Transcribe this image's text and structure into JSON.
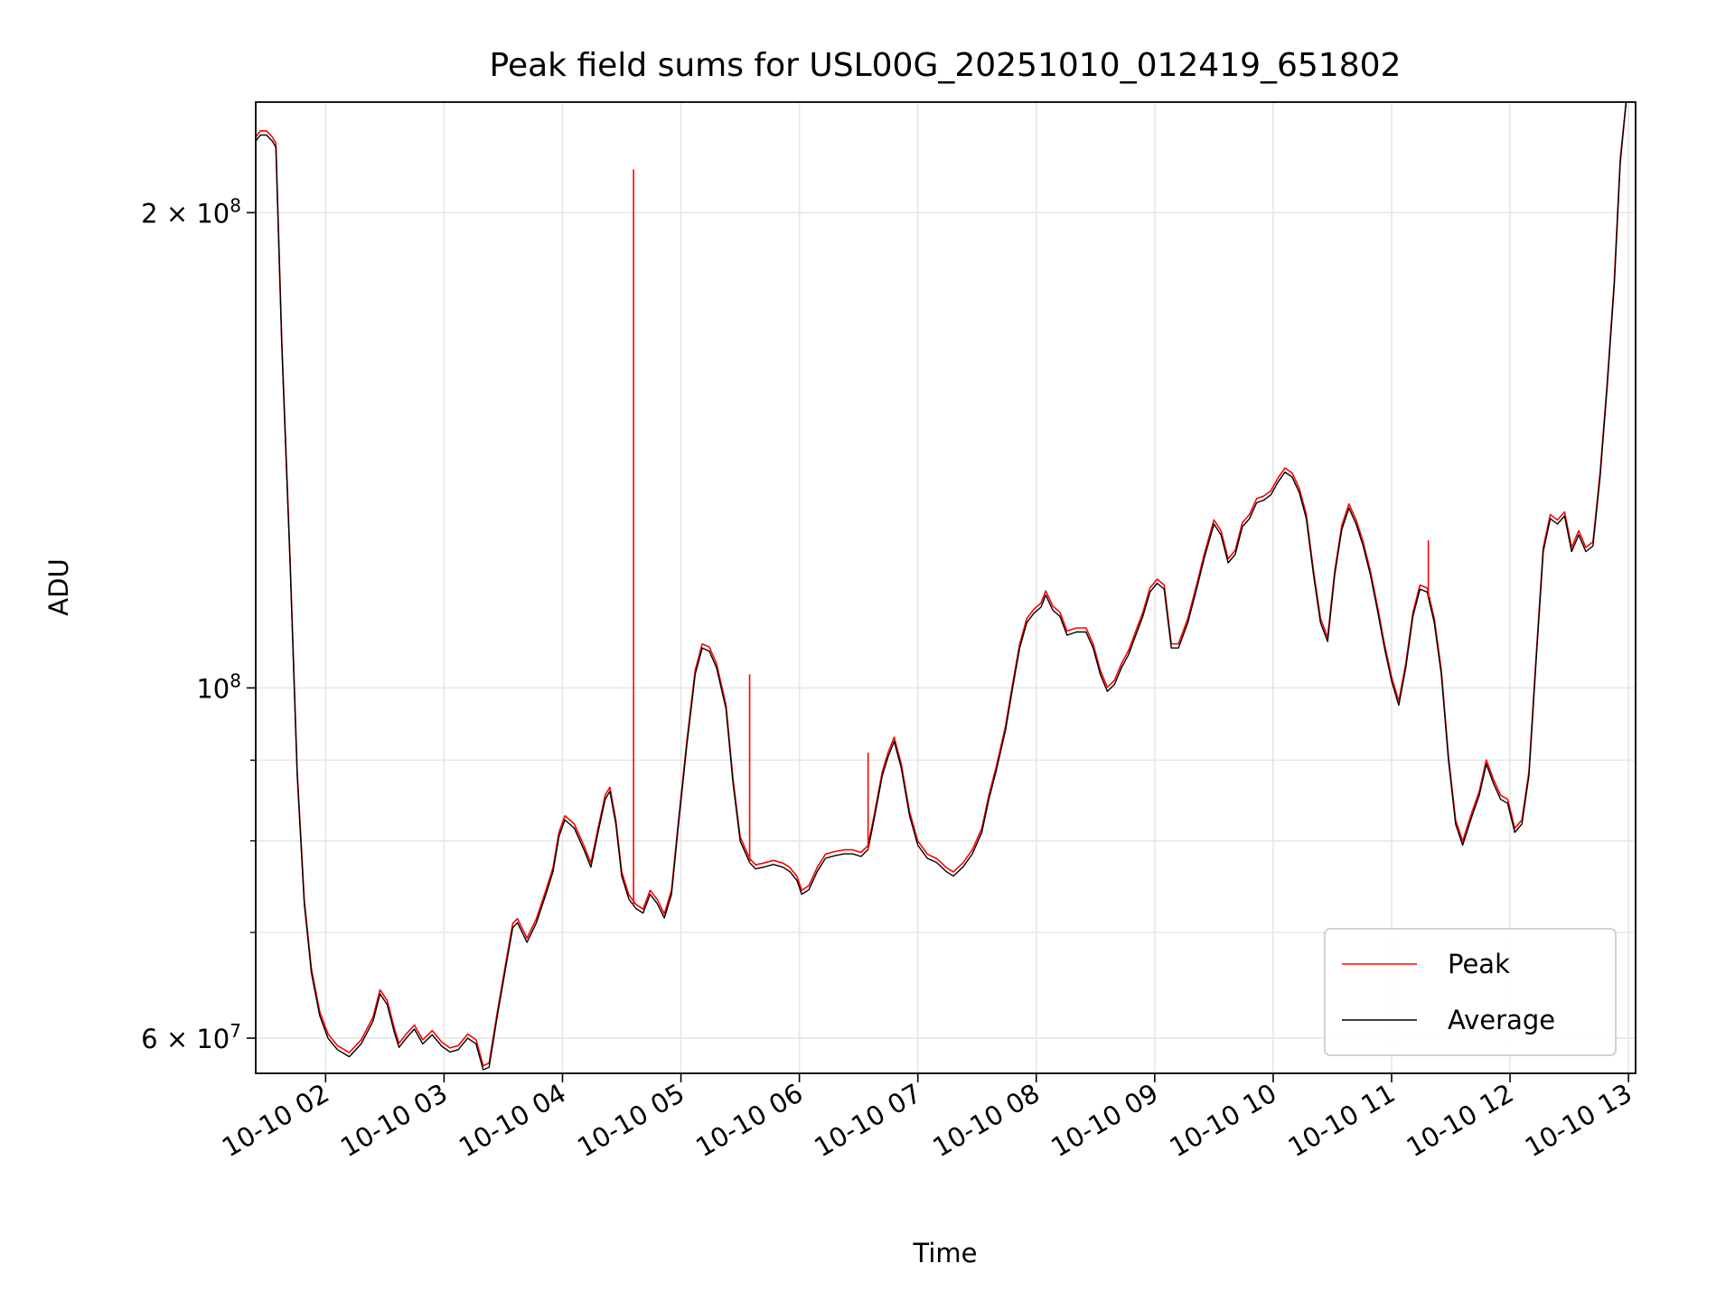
{
  "chart_data": {
    "type": "line",
    "title": "Peak field sums for USL00G_20251010_012419_651802",
    "xlabel": "Time",
    "ylabel": "ADU",
    "yscale": "log",
    "ylim": [
      57000000,
      235000000
    ],
    "xlim_hours": [
      1.41,
      13.06
    ],
    "grid": true,
    "legend_position": "lower right",
    "x_ticks": [
      {
        "hour": 2,
        "label": "10-10 02"
      },
      {
        "hour": 3,
        "label": "10-10 03"
      },
      {
        "hour": 4,
        "label": "10-10 04"
      },
      {
        "hour": 5,
        "label": "10-10 05"
      },
      {
        "hour": 6,
        "label": "10-10 06"
      },
      {
        "hour": 7,
        "label": "10-10 07"
      },
      {
        "hour": 8,
        "label": "10-10 08"
      },
      {
        "hour": 9,
        "label": "10-10 09"
      },
      {
        "hour": 10,
        "label": "10-10 10"
      },
      {
        "hour": 11,
        "label": "10-10 11"
      },
      {
        "hour": 12,
        "label": "10-10 12"
      },
      {
        "hour": 13,
        "label": "10-10 13"
      }
    ],
    "y_major_ticks": [
      {
        "value": 60000000,
        "mant": "6",
        "exp": "7"
      },
      {
        "value": 100000000,
        "mant": "",
        "exp": "8"
      },
      {
        "value": 200000000,
        "mant": "2",
        "exp": "8"
      }
    ],
    "y_minor_ticks": [
      70000000,
      80000000,
      90000000
    ],
    "series": [
      {
        "name": "Peak",
        "color": "#ff0000",
        "spikes": [
          {
            "hour": 4.6,
            "value": 213000000
          },
          {
            "hour": 5.58,
            "value": 102000000
          },
          {
            "hour": 11.31,
            "value": 124000000
          },
          {
            "hour": 6.58,
            "value": 91000000
          }
        ]
      },
      {
        "name": "Average",
        "color": "#000000",
        "points": [
          [
            1.41,
            222000000
          ],
          [
            1.45,
            224000000
          ],
          [
            1.5,
            224000000
          ],
          [
            1.55,
            222000000
          ],
          [
            1.58,
            220000000
          ],
          [
            1.63,
            165000000
          ],
          [
            1.7,
            120000000
          ],
          [
            1.76,
            88000000
          ],
          [
            1.82,
            73000000
          ],
          [
            1.88,
            66000000
          ],
          [
            1.95,
            62000000
          ],
          [
            2.02,
            60000000
          ],
          [
            2.1,
            59000000
          ],
          [
            2.2,
            58400000
          ],
          [
            2.3,
            59500000
          ],
          [
            2.4,
            61500000
          ],
          [
            2.46,
            64000000
          ],
          [
            2.52,
            63000000
          ],
          [
            2.58,
            60500000
          ],
          [
            2.62,
            59200000
          ],
          [
            2.68,
            60000000
          ],
          [
            2.75,
            60800000
          ],
          [
            2.82,
            59500000
          ],
          [
            2.9,
            60300000
          ],
          [
            2.98,
            59300000
          ],
          [
            3.05,
            58800000
          ],
          [
            3.12,
            59000000
          ],
          [
            3.2,
            60000000
          ],
          [
            3.27,
            59500000
          ],
          [
            3.33,
            57300000
          ],
          [
            3.38,
            57500000
          ],
          [
            3.45,
            62000000
          ],
          [
            3.52,
            66500000
          ],
          [
            3.58,
            70500000
          ],
          [
            3.62,
            71000000
          ],
          [
            3.7,
            69000000
          ],
          [
            3.78,
            71000000
          ],
          [
            3.86,
            74000000
          ],
          [
            3.92,
            76500000
          ],
          [
            3.97,
            80500000
          ],
          [
            4.02,
            82500000
          ],
          [
            4.1,
            81500000
          ],
          [
            4.18,
            79000000
          ],
          [
            4.24,
            77000000
          ],
          [
            4.3,
            81000000
          ],
          [
            4.36,
            85000000
          ],
          [
            4.4,
            86000000
          ],
          [
            4.45,
            82000000
          ],
          [
            4.5,
            76000000
          ],
          [
            4.56,
            73500000
          ],
          [
            4.62,
            72500000
          ],
          [
            4.68,
            72000000
          ],
          [
            4.74,
            74000000
          ],
          [
            4.8,
            73000000
          ],
          [
            4.86,
            71500000
          ],
          [
            4.92,
            74000000
          ],
          [
            4.98,
            82000000
          ],
          [
            5.05,
            92000000
          ],
          [
            5.12,
            102000000
          ],
          [
            5.18,
            106000000
          ],
          [
            5.24,
            105500000
          ],
          [
            5.3,
            103000000
          ],
          [
            5.38,
            97000000
          ],
          [
            5.44,
            87000000
          ],
          [
            5.5,
            80000000
          ],
          [
            5.58,
            77500000
          ],
          [
            5.63,
            76800000
          ],
          [
            5.7,
            77000000
          ],
          [
            5.78,
            77300000
          ],
          [
            5.86,
            77000000
          ],
          [
            5.92,
            76500000
          ],
          [
            5.98,
            75500000
          ],
          [
            6.02,
            74000000
          ],
          [
            6.08,
            74500000
          ],
          [
            6.15,
            76500000
          ],
          [
            6.22,
            78000000
          ],
          [
            6.3,
            78300000
          ],
          [
            6.38,
            78500000
          ],
          [
            6.45,
            78500000
          ],
          [
            6.52,
            78200000
          ],
          [
            6.58,
            79000000
          ],
          [
            6.63,
            82500000
          ],
          [
            6.7,
            88000000
          ],
          [
            6.75,
            90500000
          ],
          [
            6.8,
            92500000
          ],
          [
            6.86,
            89000000
          ],
          [
            6.93,
            83000000
          ],
          [
            7.0,
            79500000
          ],
          [
            7.08,
            78000000
          ],
          [
            7.16,
            77500000
          ],
          [
            7.24,
            76500000
          ],
          [
            7.3,
            76000000
          ],
          [
            7.38,
            77000000
          ],
          [
            7.46,
            78500000
          ],
          [
            7.54,
            81000000
          ],
          [
            7.6,
            85000000
          ],
          [
            7.66,
            88500000
          ],
          [
            7.74,
            94000000
          ],
          [
            7.8,
            100000000
          ],
          [
            7.86,
            106000000
          ],
          [
            7.92,
            110000000
          ],
          [
            7.98,
            111500000
          ],
          [
            8.04,
            112500000
          ],
          [
            8.08,
            114500000
          ],
          [
            8.14,
            112000000
          ],
          [
            8.2,
            111000000
          ],
          [
            8.26,
            108000000
          ],
          [
            8.34,
            108500000
          ],
          [
            8.42,
            108500000
          ],
          [
            8.48,
            106000000
          ],
          [
            8.54,
            102000000
          ],
          [
            8.6,
            99500000
          ],
          [
            8.66,
            100500000
          ],
          [
            8.72,
            103000000
          ],
          [
            8.78,
            105000000
          ],
          [
            8.84,
            108000000
          ],
          [
            8.9,
            111000000
          ],
          [
            8.96,
            115000000
          ],
          [
            9.02,
            116500000
          ],
          [
            9.08,
            115500000
          ],
          [
            9.14,
            106000000
          ],
          [
            9.2,
            106000000
          ],
          [
            9.28,
            110000000
          ],
          [
            9.36,
            116000000
          ],
          [
            9.42,
            121000000
          ],
          [
            9.5,
            127000000
          ],
          [
            9.56,
            125000000
          ],
          [
            9.62,
            120000000
          ],
          [
            9.68,
            121500000
          ],
          [
            9.74,
            126500000
          ],
          [
            9.8,
            128000000
          ],
          [
            9.86,
            131000000
          ],
          [
            9.92,
            131500000
          ],
          [
            9.98,
            132500000
          ],
          [
            10.04,
            135000000
          ],
          [
            10.1,
            137000000
          ],
          [
            10.16,
            136000000
          ],
          [
            10.22,
            133000000
          ],
          [
            10.28,
            128000000
          ],
          [
            10.34,
            118000000
          ],
          [
            10.4,
            110000000
          ],
          [
            10.46,
            107000000
          ],
          [
            10.52,
            118000000
          ],
          [
            10.58,
            126000000
          ],
          [
            10.64,
            130000000
          ],
          [
            10.7,
            127000000
          ],
          [
            10.76,
            123000000
          ],
          [
            10.82,
            118000000
          ],
          [
            10.88,
            112000000
          ],
          [
            10.94,
            106000000
          ],
          [
            11.0,
            101000000
          ],
          [
            11.06,
            97500000
          ],
          [
            11.12,
            103000000
          ],
          [
            11.18,
            111000000
          ],
          [
            11.24,
            115500000
          ],
          [
            11.3,
            115000000
          ],
          [
            11.36,
            110000000
          ],
          [
            11.42,
            102000000
          ],
          [
            11.48,
            90000000
          ],
          [
            11.54,
            82000000
          ],
          [
            11.6,
            79500000
          ],
          [
            11.68,
            83000000
          ],
          [
            11.74,
            85500000
          ],
          [
            11.8,
            89500000
          ],
          [
            11.86,
            87000000
          ],
          [
            11.92,
            85000000
          ],
          [
            11.98,
            84500000
          ],
          [
            12.04,
            81000000
          ],
          [
            12.1,
            82000000
          ],
          [
            12.16,
            88000000
          ],
          [
            12.22,
            104000000
          ],
          [
            12.28,
            122000000
          ],
          [
            12.34,
            128000000
          ],
          [
            12.4,
            127000000
          ],
          [
            12.46,
            128500000
          ],
          [
            12.52,
            122000000
          ],
          [
            12.58,
            125000000
          ],
          [
            12.64,
            122000000
          ],
          [
            12.7,
            123000000
          ],
          [
            12.76,
            136000000
          ],
          [
            12.82,
            155000000
          ],
          [
            12.88,
            180000000
          ],
          [
            12.93,
            215000000
          ],
          [
            12.98,
            235000000
          ]
        ]
      }
    ]
  }
}
